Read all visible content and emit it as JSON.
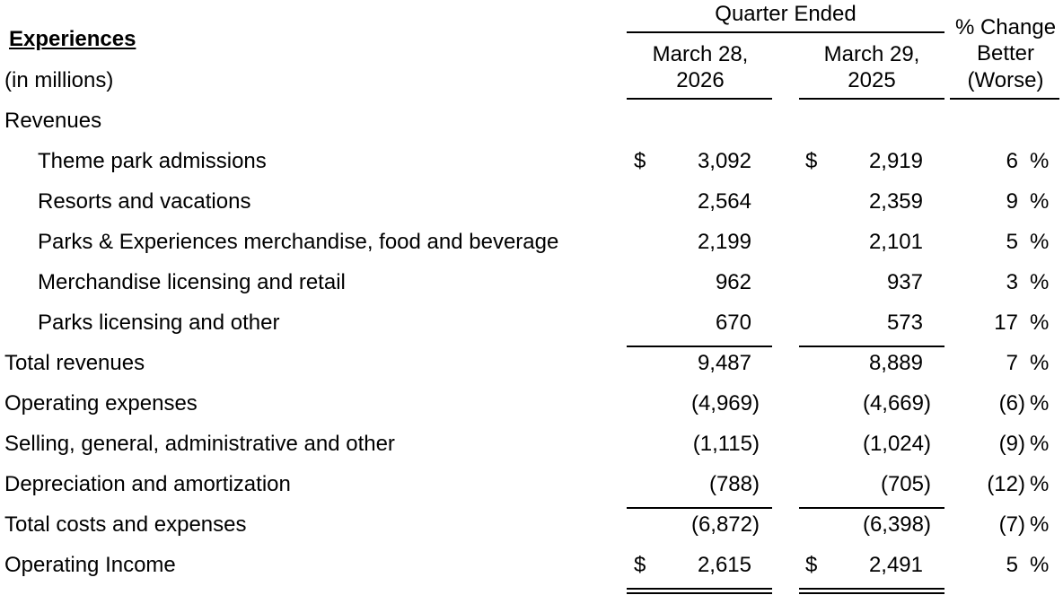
{
  "header": {
    "title": "Experiences",
    "subtitle": "(in millions)",
    "period_group": "Quarter Ended",
    "columns": [
      {
        "line1": "March 28,",
        "line2": "2026"
      },
      {
        "line1": "March 29,",
        "line2": "2025"
      }
    ],
    "change_header": [
      "% Change",
      "Better",
      "(Worse)"
    ]
  },
  "table": {
    "rows": [
      {
        "label": "Revenues",
        "indent": false
      },
      {
        "label": "Theme park admissions",
        "indent": true,
        "current": {
          "sign": "$",
          "amount": "3,092"
        },
        "prior": {
          "sign": "$",
          "amount": "2,919"
        },
        "change": {
          "amount": "6",
          "unit": "%"
        }
      },
      {
        "label": "Resorts and vacations",
        "indent": true,
        "current": {
          "amount": "2,564"
        },
        "prior": {
          "amount": "2,359"
        },
        "change": {
          "amount": "9",
          "unit": "%"
        }
      },
      {
        "label": "Parks & Experiences merchandise, food and beverage",
        "indent": true,
        "current": {
          "amount": "2,199"
        },
        "prior": {
          "amount": "2,101"
        },
        "change": {
          "amount": "5",
          "unit": "%"
        }
      },
      {
        "label": "Merchandise licensing and retail",
        "indent": true,
        "current": {
          "amount": "962"
        },
        "prior": {
          "amount": "937"
        },
        "change": {
          "amount": "3",
          "unit": "%"
        }
      },
      {
        "label": "Parks licensing and other",
        "indent": true,
        "current": {
          "amount": "670"
        },
        "prior": {
          "amount": "573"
        },
        "change": {
          "amount": "17",
          "unit": "%"
        },
        "rule_below": "single"
      },
      {
        "label": "Total revenues",
        "indent": false,
        "current": {
          "amount": "9,487"
        },
        "prior": {
          "amount": "8,889"
        },
        "change": {
          "amount": "7",
          "unit": "%"
        }
      },
      {
        "label": "Operating expenses",
        "indent": false,
        "current": {
          "amount": "(4,969)"
        },
        "prior": {
          "amount": "(4,669)"
        },
        "change": {
          "amount": "(6)",
          "unit": "%"
        }
      },
      {
        "label": "Selling, general, administrative and other",
        "indent": false,
        "current": {
          "amount": "(1,115)"
        },
        "prior": {
          "amount": "(1,024)"
        },
        "change": {
          "amount": "(9)",
          "unit": "%"
        }
      },
      {
        "label": "Depreciation and amortization",
        "indent": false,
        "current": {
          "amount": "(788)"
        },
        "prior": {
          "amount": "(705)"
        },
        "change": {
          "amount": "(12)",
          "unit": "%"
        },
        "rule_below": "single"
      },
      {
        "label": "Total costs and expenses",
        "indent": false,
        "current": {
          "amount": "(6,872)"
        },
        "prior": {
          "amount": "(6,398)"
        },
        "change": {
          "amount": "(7)",
          "unit": "%"
        }
      },
      {
        "label": "Operating Income",
        "indent": false,
        "current": {
          "sign": "$",
          "amount": "2,615"
        },
        "prior": {
          "sign": "$",
          "amount": "2,491"
        },
        "change": {
          "amount": "5",
          "unit": "%"
        },
        "rule_below": "double"
      }
    ]
  }
}
